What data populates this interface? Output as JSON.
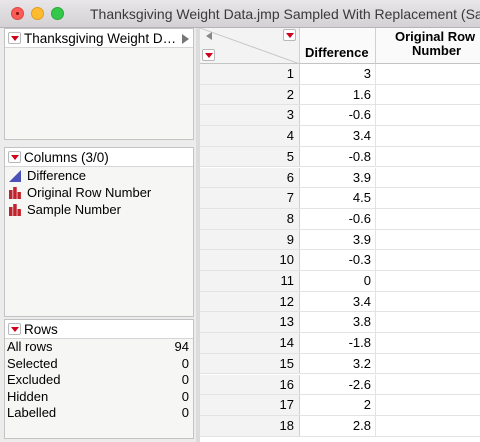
{
  "window": {
    "title": "Thanksgiving Weight Data.jmp Sampled With Replacement (Sa"
  },
  "table_panel": {
    "title": "Thanksgiving Weight D…"
  },
  "columns_panel": {
    "title": "Columns (3/0)",
    "items": [
      {
        "label": "Difference",
        "icon": "continuous-icon"
      },
      {
        "label": "Original Row Number",
        "icon": "nominal-icon"
      },
      {
        "label": "Sample Number",
        "icon": "nominal-icon"
      }
    ]
  },
  "rows_panel": {
    "title": "Rows",
    "stats": [
      {
        "label": "All rows",
        "value": "94"
      },
      {
        "label": "Selected",
        "value": "0"
      },
      {
        "label": "Excluded",
        "value": "0"
      },
      {
        "label": "Hidden",
        "value": "0"
      },
      {
        "label": "Labelled",
        "value": "0"
      }
    ]
  },
  "grid": {
    "headers": [
      "Difference",
      "Original Row",
      "Number"
    ],
    "rows": [
      {
        "n": "1",
        "difference": "3"
      },
      {
        "n": "2",
        "difference": "1.6"
      },
      {
        "n": "3",
        "difference": "-0.6"
      },
      {
        "n": "4",
        "difference": "3.4"
      },
      {
        "n": "5",
        "difference": "-0.8"
      },
      {
        "n": "6",
        "difference": "3.9"
      },
      {
        "n": "7",
        "difference": "4.5"
      },
      {
        "n": "8",
        "difference": "-0.6"
      },
      {
        "n": "9",
        "difference": "3.9"
      },
      {
        "n": "10",
        "difference": "-0.3"
      },
      {
        "n": "11",
        "difference": "0"
      },
      {
        "n": "12",
        "difference": "3.4"
      },
      {
        "n": "13",
        "difference": "3.8"
      },
      {
        "n": "14",
        "difference": "-1.8"
      },
      {
        "n": "15",
        "difference": "3.2"
      },
      {
        "n": "16",
        "difference": "-2.6"
      },
      {
        "n": "17",
        "difference": "2"
      },
      {
        "n": "18",
        "difference": "2.8"
      }
    ]
  },
  "colors": {
    "accent_red": "#d0021b",
    "continuous_icon": "#4a52b8",
    "nominal_icon": "#c0232b"
  }
}
